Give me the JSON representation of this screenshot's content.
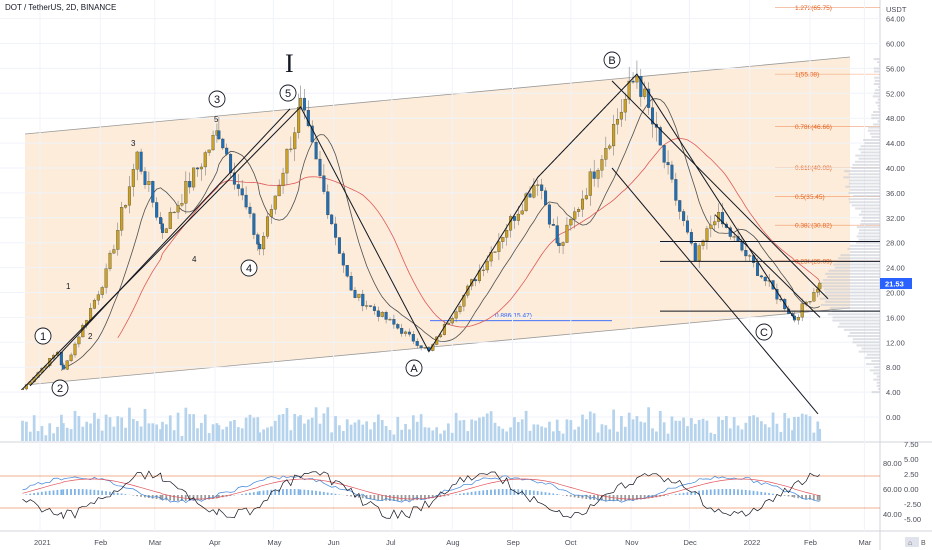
{
  "header": {
    "title": "DOT / TetherUS, 2D, BINANCE",
    "currency": "USDT",
    "last_price": "21.53",
    "scale_button": "⌂",
    "b_button": "B"
  },
  "colors": {
    "up": "#26a69a",
    "down": "#1e6fb5",
    "ma_fast": "#4f4f4f",
    "ma_slow": "#e05a5a",
    "volume": "#b5d3ec",
    "fib": "#e8601c",
    "channel_fill": "#fbe6cc",
    "macd_line": "#3c84d8",
    "signal_line": "#e2545a"
  },
  "chart_data": {
    "type": "candlestick",
    "title": "DOT / TetherUS, 2D, BINANCE",
    "y_axis": {
      "label": "USDT",
      "ticks": [
        "0.00",
        "4.00",
        "8.00",
        "12.00",
        "16.00",
        "20.00",
        "24.00",
        "28.00",
        "32.00",
        "36.00",
        "40.00",
        "44.00",
        "48.00",
        "52.00",
        "56.00",
        "60.00",
        "64.00"
      ],
      "range": [
        0,
        66
      ]
    },
    "x_axis": {
      "ticks": [
        "2021",
        "Feb",
        "Mar",
        "Apr",
        "May",
        "Jun",
        "Jul",
        "Aug",
        "Sep",
        "Oct",
        "Nov",
        "Dec",
        "2022",
        "Feb",
        "Mar"
      ]
    },
    "key_prices": [
      {
        "date": "2020-12-23",
        "price": 4.5
      },
      {
        "date": "2021-01-10",
        "price": 10.5
      },
      {
        "date": "2021-01-13",
        "price": 7.5
      },
      {
        "date": "2021-02-04",
        "price": 23.0
      },
      {
        "date": "2021-02-20",
        "price": 42.0
      },
      {
        "date": "2021-03-05",
        "price": 30.0
      },
      {
        "date": "2021-04-03",
        "price": 46.0
      },
      {
        "date": "2021-04-24",
        "price": 27.0
      },
      {
        "date": "2021-05-15",
        "price": 49.8
      },
      {
        "date": "2021-06-10",
        "price": 20.0
      },
      {
        "date": "2021-07-20",
        "price": 10.5
      },
      {
        "date": "2021-09-14",
        "price": 38.5
      },
      {
        "date": "2021-09-25",
        "price": 27.0
      },
      {
        "date": "2021-11-04",
        "price": 55.08
      },
      {
        "date": "2021-12-04",
        "price": 25.0
      },
      {
        "date": "2021-12-14",
        "price": 32.5
      },
      {
        "date": "2022-01-24",
        "price": 15.8
      },
      {
        "date": "2022-02-06",
        "price": 21.53
      }
    ],
    "fibonacci": [
      {
        "label": "1.272(65.75)",
        "price": 65.75
      },
      {
        "label": "1(55.08)",
        "price": 55.08
      },
      {
        "label": "0.786(46.66)",
        "price": 46.66
      },
      {
        "label": "0.618(40.08)",
        "price": 40.08
      },
      {
        "label": "0.5(35.45)",
        "price": 35.45
      },
      {
        "label": "0.382(30.82)",
        "price": 30.82
      },
      {
        "label": "0.236(25.09)",
        "price": 25.09
      }
    ],
    "retracement_label": {
      "label": "0.886(15.47)",
      "price": 15.47
    },
    "wave_labels": [
      "1",
      "2",
      "3",
      "4",
      "5",
      "A",
      "B",
      "C",
      "I"
    ],
    "small_labels": [
      "1",
      "2",
      "3",
      "4",
      "5"
    ],
    "oscillator_ticks": [
      "7.50",
      "5.00",
      "2.50",
      "0.00",
      "-2.50",
      "-5.00"
    ],
    "rsi_ticks": [
      "80.00",
      "60.00",
      "40.00"
    ],
    "last_price": 21.53
  }
}
